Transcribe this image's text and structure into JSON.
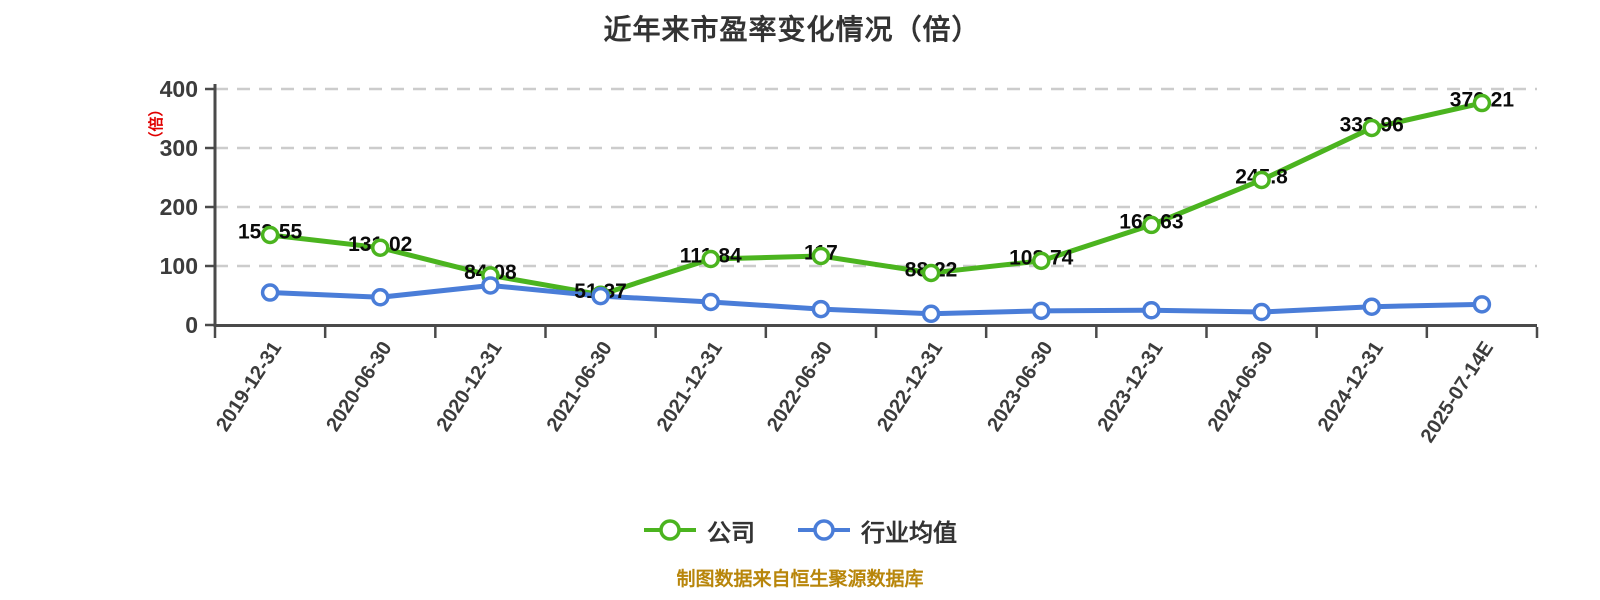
{
  "title": "近年来市盈率变化情况（倍）",
  "y_axis_unit": "（倍）",
  "footer": "制图数据来自恒生聚源数据库",
  "colors": {
    "company": "#4bb41f",
    "industry": "#4a7dd8",
    "unit_label": "#e00000",
    "footer": "#b8860b",
    "axis": "#4a4a4a",
    "grid": "#cccccc",
    "tick_label": "#3c3c3c",
    "data_label": "#0a0a0a",
    "marker_fill": "#ffffff"
  },
  "legend": {
    "items": [
      {
        "label": "公司",
        "series": "company"
      },
      {
        "label": "行业均值",
        "series": "industry"
      }
    ]
  },
  "chart_data": {
    "type": "line",
    "title": "近年来市盈率变化情况（倍）",
    "categories": [
      "2019-12-31",
      "2020-06-30",
      "2020-12-31",
      "2021-06-30",
      "2021-12-31",
      "2022-06-30",
      "2022-12-31",
      "2023-06-30",
      "2023-12-31",
      "2024-06-30",
      "2024-12-31",
      "2025-07-14E"
    ],
    "series": [
      {
        "name": "公司",
        "color_key": "company",
        "values": [
          152.55,
          131.02,
          84.08,
          51.37,
          111.84,
          117,
          88.22,
          108.74,
          169.63,
          245.8,
          333.96,
          376.21
        ],
        "point_labels": [
          "152.55",
          "131.02",
          "84.08",
          "51.37",
          "111.84",
          "117",
          "88.22",
          "108.74",
          "169.63",
          "245.8",
          "333.96",
          "376.21"
        ]
      },
      {
        "name": "行业均值",
        "color_key": "industry",
        "values": [
          55,
          47,
          67,
          49,
          39,
          27,
          19,
          24,
          25,
          22,
          31,
          35
        ],
        "point_labels": null
      }
    ],
    "ylim": [
      0,
      400
    ],
    "y_ticks": [
      0,
      100,
      200,
      300,
      400
    ],
    "grid": "horizontal-dashed",
    "legend_position": "bottom"
  }
}
